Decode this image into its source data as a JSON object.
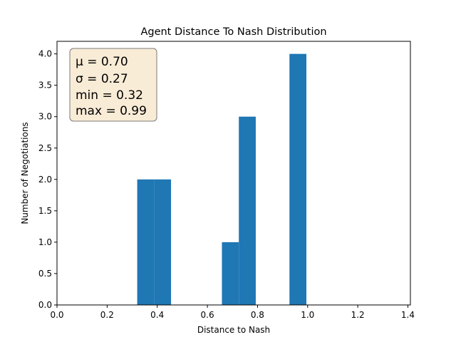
{
  "chart_data": {
    "type": "bar",
    "title": "Agent Distance To Nash Distribution",
    "xlabel": "Distance to Nash",
    "ylabel": "Number of Negotiations",
    "xlim": [
      0.0,
      1.41
    ],
    "ylim": [
      0.0,
      4.2
    ],
    "xticks": [
      0.0,
      0.2,
      0.4,
      0.6,
      0.8,
      1.0,
      1.2,
      1.4
    ],
    "xtick_labels": [
      "0.0",
      "0.2",
      "0.4",
      "0.6",
      "0.8",
      "1.0",
      "1.2",
      "1.4"
    ],
    "yticks": [
      0.0,
      0.5,
      1.0,
      1.5,
      2.0,
      2.5,
      3.0,
      3.5,
      4.0
    ],
    "ytick_labels": [
      "0.0",
      "0.5",
      "1.0",
      "1.5",
      "2.0",
      "2.5",
      "3.0",
      "3.5",
      "4.0"
    ],
    "bin_width": 0.0675,
    "bins": [
      {
        "start": 0.32,
        "count": 2
      },
      {
        "start": 0.3875,
        "count": 2
      },
      {
        "start": 0.658,
        "count": 1
      },
      {
        "start": 0.7255,
        "count": 3
      },
      {
        "start": 0.9275,
        "count": 4
      }
    ],
    "bar_color": "#1f77b4",
    "stats_box": {
      "lines": [
        "μ = 0.70",
        "σ = 0.27",
        "min = 0.32",
        "max = 0.99"
      ],
      "background": "#f9ecd6",
      "border": "#7a7a7a"
    }
  }
}
